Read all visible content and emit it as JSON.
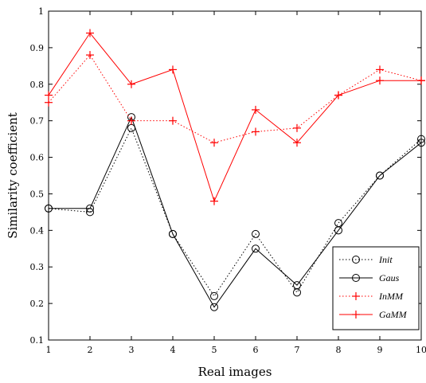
{
  "chart_data": {
    "type": "line",
    "xlabel": "Real images",
    "ylabel": "Similarity coefficient",
    "x": [
      1,
      2,
      3,
      4,
      5,
      6,
      7,
      8,
      9,
      10
    ],
    "xlim": [
      1,
      10
    ],
    "ylim": [
      0.1,
      1
    ],
    "xticks": [
      1,
      2,
      3,
      4,
      5,
      6,
      7,
      8,
      9,
      10
    ],
    "yticks": [
      0.1,
      0.2,
      0.3,
      0.4,
      0.5,
      0.6,
      0.7,
      0.8,
      0.9,
      1
    ],
    "ytick_labels": [
      "0.1",
      "0.2",
      "0.3",
      "0.4",
      "0.5",
      "0.6",
      "0.7",
      "0.8",
      "0.9",
      "1"
    ],
    "grid": false,
    "legend_position": "bottom-right",
    "series": [
      {
        "name": "Init",
        "color": "#000000",
        "line_style": "dotted",
        "marker": "circle",
        "values": [
          0.46,
          0.45,
          0.68,
          0.39,
          0.22,
          0.39,
          0.23,
          0.42,
          0.55,
          0.65
        ]
      },
      {
        "name": "Gaus",
        "color": "#000000",
        "line_style": "solid",
        "marker": "circle",
        "values": [
          0.46,
          0.46,
          0.71,
          0.39,
          0.19,
          0.35,
          0.25,
          0.4,
          0.55,
          0.64
        ]
      },
      {
        "name": "InMM",
        "color": "#ff0000",
        "line_style": "dotted",
        "marker": "plus",
        "values": [
          0.75,
          0.88,
          0.7,
          0.7,
          0.64,
          0.67,
          0.68,
          0.77,
          0.84,
          0.81
        ]
      },
      {
        "name": "GaMM",
        "color": "#ff0000",
        "line_style": "solid",
        "marker": "plus",
        "values": [
          0.77,
          0.94,
          0.8,
          0.84,
          0.48,
          0.73,
          0.64,
          0.77,
          0.81,
          0.81
        ]
      }
    ]
  }
}
